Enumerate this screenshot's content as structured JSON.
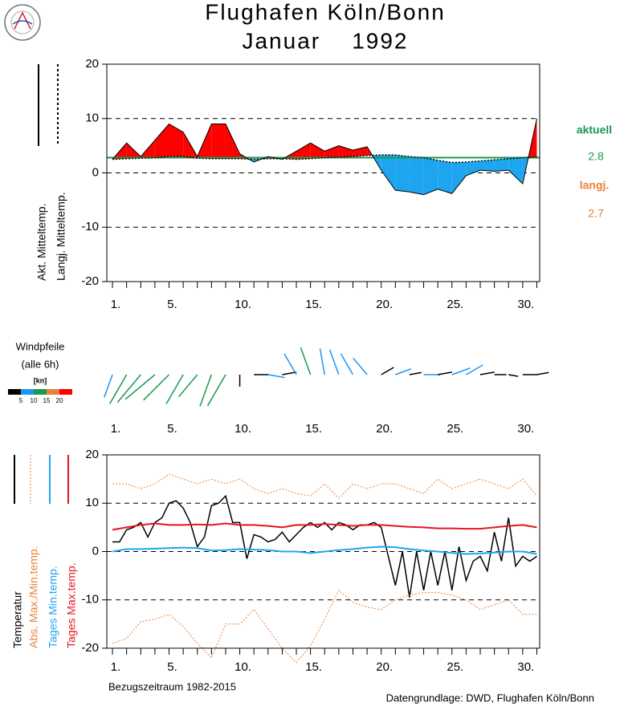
{
  "title": "Flughafen Köln/Bonn",
  "subtitle": "Januar    1992",
  "footer": {
    "left": "Bezugszeitraum 1982-2015",
    "right": "Datengrundlage: DWD, Flughafen Köln/Bonn"
  },
  "chart_data": [
    {
      "type": "diffline",
      "x": [
        1,
        2,
        3,
        4,
        5,
        6,
        7,
        8,
        9,
        10,
        11,
        12,
        13,
        14,
        15,
        16,
        17,
        18,
        19,
        20,
        21,
        22,
        23,
        24,
        25,
        26,
        27,
        28,
        29,
        30,
        31
      ],
      "series": [
        {
          "name": "Akt. Mitteltemp.",
          "color": "#000000",
          "values": [
            2.5,
            5.5,
            3,
            6,
            9,
            7.5,
            3,
            9,
            9,
            3.5,
            2,
            3,
            2.5,
            4,
            5.5,
            4,
            5,
            4.2,
            4.8,
            0.5,
            -3.2,
            -3.5,
            -4,
            -3,
            -3.8,
            -0.5,
            0.5,
            0.3,
            0.5,
            -2,
            10
          ]
        },
        {
          "name": "Langj. Mitteltemp.",
          "color": "#000000",
          "dash": true,
          "values": [
            2.5,
            2.6,
            2.7,
            2.8,
            3,
            3,
            2.7,
            2.6,
            2.6,
            2.6,
            2.5,
            2.6,
            2.6,
            2.5,
            2.6,
            2.8,
            2.9,
            3,
            3.2,
            3.3,
            3.3,
            3,
            2.8,
            2.3,
            1.9,
            2,
            2.2,
            2.4,
            2.6,
            2.8,
            2.9
          ]
        }
      ],
      "fill_above": "#ff0000",
      "fill_below": "#1ea5f0",
      "references": [
        {
          "name": "aktuell",
          "value": 2.8,
          "color": "#1a9850",
          "line": true
        },
        {
          "name": "langj.",
          "value": 2.7,
          "color": "#e8823a",
          "line": false
        }
      ],
      "xlim": [
        0.6,
        31.2
      ],
      "xticks": [
        {
          "value": 1,
          "label": "1."
        },
        {
          "value": 5,
          "label": "5."
        },
        {
          "value": 10,
          "label": "10."
        },
        {
          "value": 15,
          "label": "15."
        },
        {
          "value": 20,
          "label": "20."
        },
        {
          "value": 25,
          "label": "25."
        },
        {
          "value": 30,
          "label": "30."
        }
      ],
      "xminor": [
        1,
        2,
        3,
        4,
        5,
        6,
        7,
        8,
        9,
        10,
        11,
        12,
        13,
        14,
        15,
        16,
        17,
        18,
        19,
        20,
        21,
        22,
        23,
        24,
        25,
        26,
        27,
        28,
        29,
        30,
        31
      ],
      "ylim": [
        -20,
        20
      ],
      "yticks": [
        -20,
        -10,
        0,
        10,
        20
      ],
      "grid": "dashed"
    },
    {
      "type": "wind",
      "title": "Windpfeile",
      "subtitle": "(alle 6h)",
      "unit": "[kn]",
      "x": [
        1,
        2,
        3,
        4,
        5,
        6,
        7,
        8,
        9,
        10,
        11,
        12,
        13,
        14,
        15,
        16,
        17,
        18,
        19,
        20,
        21,
        22,
        23,
        24,
        25,
        26,
        27,
        28,
        29,
        30,
        31
      ],
      "direction": [
        200,
        210,
        220,
        230,
        225,
        210,
        220,
        200,
        210,
        180,
        90,
        100,
        80,
        330,
        340,
        350,
        340,
        330,
        320,
        60,
        70,
        80,
        90,
        80,
        70,
        60,
        80,
        90,
        100,
        90,
        80
      ],
      "speed": [
        8,
        12,
        13,
        14,
        13,
        12,
        10,
        12,
        13,
        3,
        4,
        5,
        4,
        8,
        10,
        9,
        9,
        8,
        7,
        4,
        5,
        3,
        5,
        4,
        6,
        6,
        4,
        3,
        2,
        4,
        3
      ],
      "color_scale": {
        "bounds": [
          5,
          10,
          15,
          20
        ],
        "colors": [
          "#000000",
          "#1e96f0",
          "#1a9850",
          "#e8823a",
          "#ff0000"
        ]
      },
      "xlim": [
        0.6,
        31.2
      ],
      "xticks": [
        {
          "value": 1,
          "label": "1."
        },
        {
          "value": 5,
          "label": "5."
        },
        {
          "value": 10,
          "label": "10."
        },
        {
          "value": 15,
          "label": "15."
        },
        {
          "value": 20,
          "label": "20."
        },
        {
          "value": 25,
          "label": "25."
        },
        {
          "value": 30,
          "label": "30."
        }
      ]
    },
    {
      "type": "line",
      "x": [
        1,
        2,
        3,
        4,
        5,
        6,
        7,
        8,
        9,
        10,
        11,
        12,
        13,
        14,
        15,
        16,
        17,
        18,
        19,
        20,
        21,
        22,
        23,
        24,
        25,
        26,
        27,
        28,
        29,
        30,
        31
      ],
      "series": [
        {
          "name": "Temperatur",
          "color": "#000000",
          "width": 1.5,
          "x": [
            1,
            1.5,
            2,
            2.5,
            3,
            3.5,
            4,
            4.5,
            5,
            5.5,
            6,
            6.5,
            7,
            7.5,
            8,
            8.5,
            9,
            9.5,
            10,
            10.5,
            11,
            11.5,
            12,
            12.5,
            13,
            13.5,
            14,
            14.5,
            15,
            15.5,
            16,
            16.5,
            17,
            17.5,
            18,
            18.5,
            19,
            19.5,
            20,
            20.5,
            21,
            21.5,
            22,
            22.5,
            23,
            23.5,
            24,
            24.5,
            25,
            25.5,
            26,
            26.5,
            27,
            27.5,
            28,
            28.5,
            29,
            29.5,
            30,
            30.5,
            31
          ],
          "values": [
            2,
            2,
            4.5,
            5,
            6,
            3,
            6,
            7,
            10,
            10.5,
            9,
            6,
            1,
            3,
            9.5,
            10,
            11.5,
            6,
            6,
            -1.5,
            3.5,
            3,
            2,
            2.5,
            4,
            2,
            3.5,
            5,
            6,
            5,
            6,
            4.5,
            6,
            5.5,
            4.5,
            5.5,
            5.5,
            6,
            5,
            -1,
            -7,
            0,
            -9.5,
            0,
            -8,
            0,
            -7,
            0,
            -8,
            1,
            -6,
            -2,
            -1,
            -4,
            4,
            -2,
            7,
            -3,
            -1,
            -2,
            -1
          ]
        },
        {
          "name": "Abs. Max./Min.temp.",
          "color": "#e8823a",
          "dash": true,
          "width": 1,
          "max": [
            14,
            14,
            13,
            14,
            16,
            15,
            14,
            15,
            14,
            15,
            13,
            12,
            13,
            12,
            11.5,
            14,
            11,
            14,
            13,
            14,
            14,
            13,
            12,
            15,
            13,
            14,
            15,
            14,
            13,
            15,
            11.5
          ],
          "min": [
            -19,
            -18,
            -14.5,
            -14,
            -13,
            -15.5,
            -19,
            -22,
            -15,
            -15,
            -12,
            -16,
            -20,
            -23,
            -19.5,
            -14,
            -8,
            -10.5,
            -11.5,
            -12,
            -10,
            -9,
            -8.5,
            -8.5,
            -9,
            -10,
            -12,
            -11,
            -10,
            -13,
            -13
          ]
        },
        {
          "name": "Tages Min.temp.",
          "color": "#1ea5f0",
          "width": 2,
          "values": [
            0,
            0.5,
            0.5,
            0.6,
            0.7,
            0.8,
            0.7,
            0.2,
            0.3,
            0.5,
            0.4,
            0.3,
            0,
            0,
            -0.3,
            0,
            0.3,
            0.5,
            0.8,
            1,
            0.9,
            0.5,
            0.2,
            0,
            -0.3,
            -0.5,
            -0.4,
            -0.2,
            0,
            0,
            -0.5
          ]
        },
        {
          "name": "Tages Max.temp.",
          "color": "#e8141e",
          "width": 2,
          "values": [
            4.5,
            5,
            5.5,
            5.8,
            5.5,
            5.5,
            5.6,
            5.5,
            5.8,
            5.5,
            5.5,
            5.3,
            5,
            5.5,
            5.5,
            5.7,
            5.5,
            5.3,
            5.5,
            5.5,
            5.3,
            5.1,
            5,
            4.8,
            4.8,
            4.7,
            4.7,
            5,
            5.3,
            5.5,
            5
          ]
        }
      ],
      "xlim": [
        0.6,
        31.2
      ],
      "xticks": [
        {
          "value": 1,
          "label": "1."
        },
        {
          "value": 5,
          "label": "5."
        },
        {
          "value": 10,
          "label": "10."
        },
        {
          "value": 15,
          "label": "15."
        },
        {
          "value": 20,
          "label": "20."
        },
        {
          "value": 25,
          "label": "25."
        },
        {
          "value": 30,
          "label": "30."
        }
      ],
      "xminor": [
        1,
        2,
        3,
        4,
        5,
        6,
        7,
        8,
        9,
        10,
        11,
        12,
        13,
        14,
        15,
        16,
        17,
        18,
        19,
        20,
        21,
        22,
        23,
        24,
        25,
        26,
        27,
        28,
        29,
        30,
        31
      ],
      "ylim": [
        -20,
        20
      ],
      "yticks": [
        -20,
        -10,
        0,
        10,
        20
      ],
      "grid": "dashed"
    }
  ]
}
